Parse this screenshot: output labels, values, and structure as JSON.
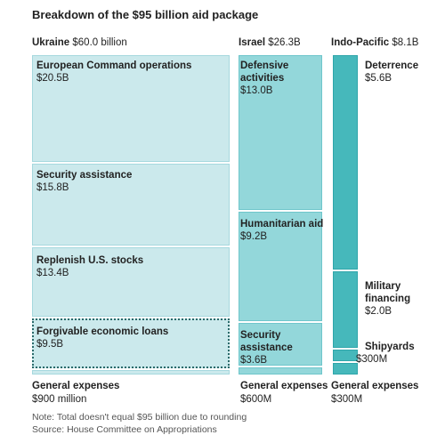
{
  "title": "Breakdown of the $95 billion aid package",
  "colors": {
    "ukraine": "#cbe9ec",
    "ukraine_border": "#a6d8de",
    "israel": "#93d7da",
    "israel_border": "#6fc6cb",
    "indo_pacific": "#46b8bb",
    "indo_pacific_border": "#2fa6aa",
    "dotted": "#2a6a6a"
  },
  "columns": {
    "ukraine": {
      "name": "Ukraine",
      "total": "$60.0 billion"
    },
    "israel": {
      "name": "Israel",
      "total": "$26.3B"
    },
    "indo_pacific": {
      "name": "Indo-Pacific",
      "total": "$8.1B"
    }
  },
  "chart_data": {
    "type": "treemap",
    "title": "Breakdown of the $95 billion aid package",
    "units": "billion USD",
    "groups": [
      {
        "name": "Ukraine",
        "total_label": "$60.0 billion",
        "total": 60.0,
        "items": [
          {
            "name": "European Command operations",
            "label": "$20.5B",
            "value": 20.5
          },
          {
            "name": "Security assistance",
            "label": "$15.8B",
            "value": 15.8
          },
          {
            "name": "Replenish U.S. stocks",
            "label": "$13.4B",
            "value": 13.4
          },
          {
            "name": "Forgivable economic loans",
            "label": "$9.5B",
            "value": 9.5,
            "style": "dotted"
          },
          {
            "name": "General expenses",
            "label": "$900 million",
            "value": 0.9
          }
        ]
      },
      {
        "name": "Israel",
        "total_label": "$26.3B",
        "total": 26.3,
        "items": [
          {
            "name": "Defensive activities",
            "label": "$13.0B",
            "value": 13.0
          },
          {
            "name": "Humanitarian aid",
            "label": "$9.2B",
            "value": 9.2
          },
          {
            "name": "Security assistance",
            "label": "$3.6B",
            "value": 3.6
          },
          {
            "name": "General expenses",
            "label": "$600M",
            "value": 0.6
          }
        ]
      },
      {
        "name": "Indo-Pacific",
        "total_label": "$8.1B",
        "total": 8.1,
        "items": [
          {
            "name": "Deterrence",
            "label": "$5.6B",
            "value": 5.6
          },
          {
            "name": "Military financing",
            "label": "$2.0B",
            "value": 2.0
          },
          {
            "name": "Shipyards",
            "label": "$300M",
            "value": 0.3
          },
          {
            "name": "General expenses",
            "label": "$300M",
            "value": 0.3
          }
        ]
      }
    ]
  },
  "labels": {
    "israel_defensive_l1": "Defensive",
    "israel_defensive_l2": "activities",
    "israel_security_l1": "Security",
    "israel_security_l2": "assistance",
    "indo_military_l1": "Military",
    "indo_military_l2": "financing"
  },
  "footer": {
    "note": "Note: Total doesn't equal $95 billion due to rounding",
    "source": "Source: House Committee on Appropriations"
  }
}
